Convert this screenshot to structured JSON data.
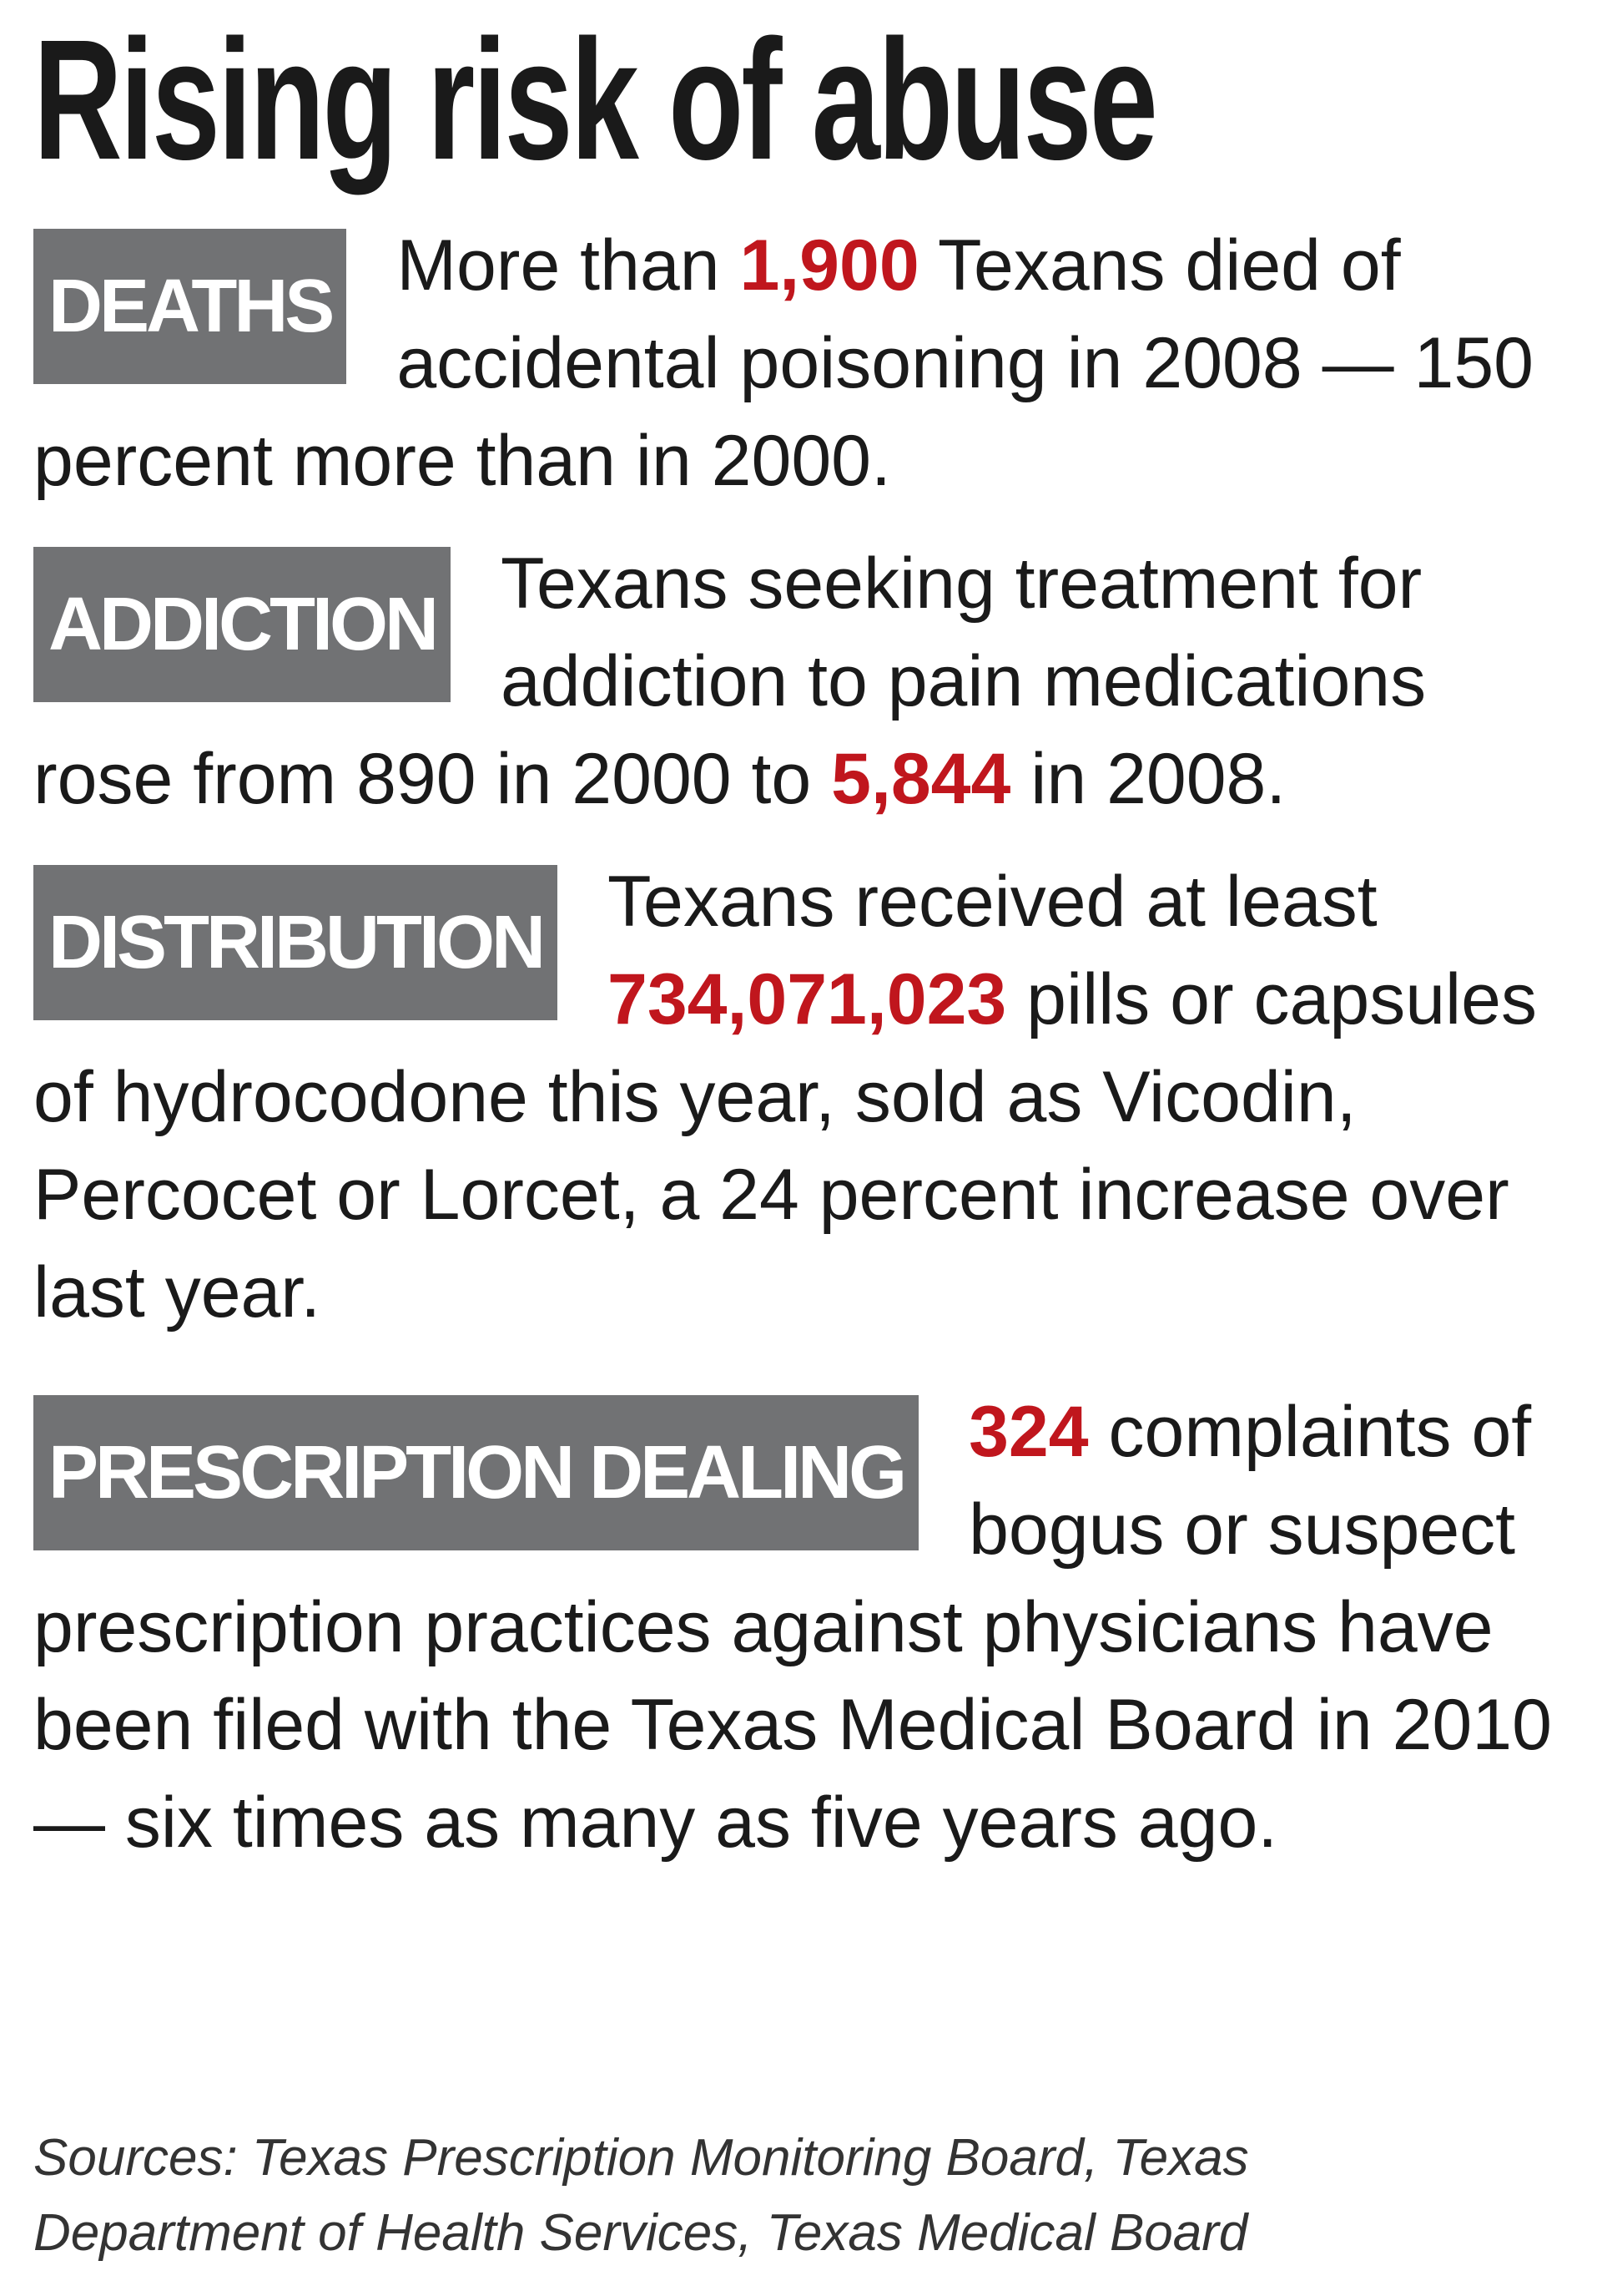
{
  "title": "Rising risk of abuse",
  "highlight_color": "#c0161d",
  "sections": [
    {
      "label": "DEATHS",
      "segments": [
        {
          "text": "More than ",
          "emphasis": false
        },
        {
          "text": "1,900",
          "emphasis": true
        },
        {
          "text": " Texans died of accidental poisoning in 2008 — 150 percent more than in 2000.",
          "emphasis": false
        }
      ]
    },
    {
      "label": "ADDICTION",
      "segments": [
        {
          "text": "Texans seeking treatment for addiction to pain medications rose from 890 in 2000 to ",
          "emphasis": false
        },
        {
          "text": "5,844",
          "emphasis": true
        },
        {
          "text": " in 2008.",
          "emphasis": false
        }
      ]
    },
    {
      "label": "DISTRIBUTION",
      "segments": [
        {
          "text": "Texans received at least ",
          "emphasis": false
        },
        {
          "text": "734,071,023",
          "emphasis": true
        },
        {
          "text": " pills or capsules of hydrocodone this year, sold as Vicodin, Percocet or Lorcet, a 24 percent increase over last year.",
          "emphasis": false
        }
      ]
    },
    {
      "label": "PRESCRIPTION DEALING",
      "segments": [
        {
          "text": "324",
          "emphasis": true
        },
        {
          "text": " complaints of bogus or suspect prescription practices against physicians have been filed with the Texas Medical Board in 2010 — six times as many as five years ago.",
          "emphasis": false
        }
      ]
    }
  ],
  "sources": "Sources: Texas Prescription Monitoring Board, Texas Department of Health Services, Texas Medical Board"
}
